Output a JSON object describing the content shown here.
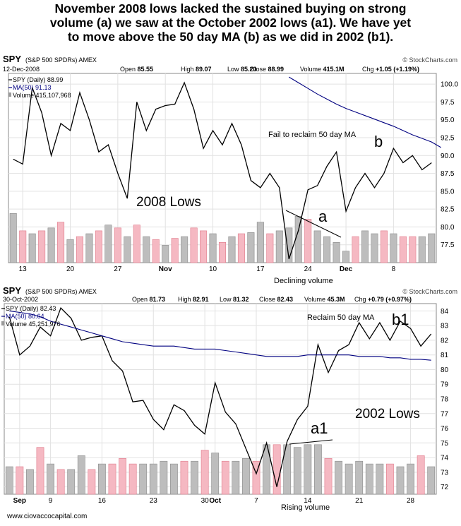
{
  "headline": [
    "November 2008 lows lacked the sustained buying on strong",
    "volume (a) we saw at the October 2002 lows (a1).  We have yet",
    "to move above the 50 day MA (b) as we did in 2002 (b1)."
  ],
  "footer": {
    "website": "www.ciovaccocapital.com"
  },
  "chart_data": [
    {
      "type": "line",
      "symbol": "SPY",
      "name": "(S&P 500 SPDRs) AMEX",
      "date": "12-Dec-2008",
      "brand": "© StockCharts.com",
      "quote": {
        "open_label": "Open",
        "open": "85.55",
        "high_label": "High",
        "high": "89.07",
        "low_label": "Low",
        "low": "85.20",
        "close_label": "Close",
        "close": "88.99",
        "volume_label": "Volume",
        "volume": "415.1M",
        "chg_label": "Chg",
        "chg": "+1.05 (+1.19%)"
      },
      "legend": [
        "SPY (Daily) 88.99",
        "MA(50) 91.13",
        "Volume 415,107,968"
      ],
      "ylim": [
        75,
        101.5
      ],
      "yticks": [
        77.5,
        80.0,
        82.5,
        85.0,
        87.5,
        90.0,
        92.5,
        95.0,
        97.5,
        100.0
      ],
      "ytick_labels": [
        "77.5",
        "80.0",
        "82.5",
        "85.0",
        "87.5",
        "90.0",
        "92.5",
        "95.0",
        "97.5",
        "100.0"
      ],
      "xticks": [
        {
          "i": 1,
          "label": "13"
        },
        {
          "i": 6,
          "label": "20"
        },
        {
          "i": 11,
          "label": "27"
        },
        {
          "i": 16,
          "label": "Nov"
        },
        {
          "i": 21,
          "label": "10"
        },
        {
          "i": 26,
          "label": "17"
        },
        {
          "i": 31,
          "label": "24"
        },
        {
          "i": 35,
          "label": "Dec"
        },
        {
          "i": 40,
          "label": "8"
        }
      ],
      "series": [
        {
          "name": "SPY (Daily)",
          "color": "#000000",
          "values": [
            89.5,
            88.8,
            99.5,
            96.0,
            90.0,
            94.5,
            93.5,
            98.8,
            95.0,
            90.5,
            91.5,
            87.5,
            84.0,
            97.5,
            93.5,
            96.5,
            97.0,
            97.2,
            100.2,
            96.5,
            91.0,
            93.5,
            91.5,
            94.5,
            91.5,
            86.5,
            85.5,
            87.5,
            85.5,
            75.5,
            79.5,
            85.2,
            85.8,
            88.5,
            90.5,
            82.2,
            85.5,
            87.5,
            85.5,
            87.5,
            91.0,
            89.0,
            90.0,
            88.0,
            88.99
          ]
        },
        {
          "name": "MA(50)",
          "color": "#000080",
          "start": 29,
          "values": [
            101.0,
            100.2,
            99.4,
            98.6,
            97.9,
            97.2,
            96.6,
            96.1,
            95.6,
            95.1,
            94.6,
            94.1,
            93.5,
            92.9,
            92.4,
            91.9,
            91.13
          ]
        }
      ],
      "volume_bars": [
        {
          "h": 0.85,
          "up": false
        },
        {
          "h": 0.55,
          "up": true
        },
        {
          "h": 0.5,
          "up": false
        },
        {
          "h": 0.55,
          "up": true
        },
        {
          "h": 0.6,
          "up": false
        },
        {
          "h": 0.7,
          "up": true
        },
        {
          "h": 0.4,
          "up": false
        },
        {
          "h": 0.45,
          "up": true
        },
        {
          "h": 0.5,
          "up": false
        },
        {
          "h": 0.55,
          "up": true
        },
        {
          "h": 0.65,
          "up": false
        },
        {
          "h": 0.6,
          "up": true
        },
        {
          "h": 0.45,
          "up": false
        },
        {
          "h": 0.65,
          "up": true
        },
        {
          "h": 0.45,
          "up": false
        },
        {
          "h": 0.4,
          "up": true
        },
        {
          "h": 0.3,
          "up": false
        },
        {
          "h": 0.42,
          "up": true
        },
        {
          "h": 0.45,
          "up": false
        },
        {
          "h": 0.6,
          "up": true
        },
        {
          "h": 0.55,
          "up": true
        },
        {
          "h": 0.5,
          "up": false
        },
        {
          "h": 0.35,
          "up": true
        },
        {
          "h": 0.45,
          "up": false
        },
        {
          "h": 0.5,
          "up": true
        },
        {
          "h": 0.52,
          "up": false
        },
        {
          "h": 0.7,
          "up": false
        },
        {
          "h": 0.5,
          "up": true
        },
        {
          "h": 0.55,
          "up": false
        },
        {
          "h": 0.6,
          "up": false
        },
        {
          "h": 0.8,
          "up": false
        },
        {
          "h": 0.75,
          "up": true
        },
        {
          "h": 0.55,
          "up": false
        },
        {
          "h": 0.45,
          "up": false
        },
        {
          "h": 0.35,
          "up": false
        },
        {
          "h": 0.2,
          "up": false
        },
        {
          "h": 0.45,
          "up": true
        },
        {
          "h": 0.55,
          "up": false
        },
        {
          "h": 0.5,
          "up": false
        },
        {
          "h": 0.55,
          "up": true
        },
        {
          "h": 0.5,
          "up": false
        },
        {
          "h": 0.45,
          "up": true
        },
        {
          "h": 0.45,
          "up": true
        },
        {
          "h": 0.45,
          "up": false
        },
        {
          "h": 0.5,
          "up": false
        }
      ],
      "annotations": {
        "ma_note": "Fail to reclaim 50 day MA",
        "label_b": "b",
        "lows": "2008 Lows",
        "label_a": "a",
        "volume_note": "Declining volume"
      }
    },
    {
      "type": "line",
      "symbol": "SPY",
      "name": "(S&P 500 SPDRs) AMEX",
      "date": "30-Oct-2002",
      "brand": "© StockCharts.com",
      "quote": {
        "open_label": "Open",
        "open": "81.73",
        "high_label": "High",
        "high": "82.91",
        "low_label": "Low",
        "low": "81.32",
        "close_label": "Close",
        "close": "82.43",
        "volume_label": "Volume",
        "volume": "45.3M",
        "chg_label": "Chg",
        "chg": "+0.79 (+0.97%)"
      },
      "legend": [
        "SPY (Daily) 82.43",
        "MA(50) 80.64",
        "Volume 45,251,976"
      ],
      "ylim": [
        71.5,
        84.5
      ],
      "yticks": [
        72,
        73,
        74,
        75,
        76,
        77,
        78,
        79,
        80,
        81,
        82,
        83,
        84
      ],
      "ytick_labels": [
        "72",
        "73",
        "74",
        "75",
        "76",
        "77",
        "78",
        "79",
        "80",
        "81",
        "82",
        "83",
        "84"
      ],
      "xticks": [
        {
          "i": 1,
          "label": "Sep"
        },
        {
          "i": 4,
          "label": "9"
        },
        {
          "i": 9,
          "label": "16"
        },
        {
          "i": 14,
          "label": "23"
        },
        {
          "i": 19,
          "label": "30"
        },
        {
          "i": 20,
          "label": "Oct"
        },
        {
          "i": 24,
          "label": "7"
        },
        {
          "i": 29,
          "label": "14"
        },
        {
          "i": 34,
          "label": "21"
        },
        {
          "i": 39,
          "label": "28"
        }
      ],
      "series": [
        {
          "name": "SPY (Daily)",
          "color": "#000000",
          "values": [
            83.6,
            81.0,
            81.6,
            82.9,
            82.3,
            84.2,
            83.5,
            82.0,
            82.2,
            82.3,
            80.6,
            79.9,
            77.8,
            77.9,
            76.6,
            75.9,
            77.6,
            77.2,
            76.2,
            75.6,
            79.1,
            77.1,
            76.3,
            74.6,
            72.9,
            75.0,
            72.0,
            75.1,
            76.6,
            77.5,
            81.7,
            79.8,
            81.3,
            81.7,
            83.2,
            82.1,
            83.2,
            82.0,
            83.3,
            82.8,
            81.6,
            82.43
          ]
        },
        {
          "name": "MA(50)",
          "color": "#000080",
          "values": [
            84.0,
            83.9,
            83.8,
            83.6,
            83.3,
            83.1,
            82.9,
            82.7,
            82.5,
            82.3,
            82.1,
            81.9,
            81.8,
            81.7,
            81.6,
            81.6,
            81.6,
            81.5,
            81.4,
            81.4,
            81.4,
            81.3,
            81.2,
            81.1,
            81.0,
            80.9,
            80.9,
            80.9,
            80.9,
            81.0,
            81.0,
            81.0,
            81.0,
            81.0,
            80.9,
            80.9,
            80.9,
            80.8,
            80.8,
            80.7,
            80.7,
            80.64
          ]
        }
      ],
      "volume_bars": [
        {
          "h": 0.5,
          "up": false
        },
        {
          "h": 0.5,
          "up": true
        },
        {
          "h": 0.45,
          "up": false
        },
        {
          "h": 0.85,
          "up": true
        },
        {
          "h": 0.55,
          "up": false
        },
        {
          "h": 0.45,
          "up": true
        },
        {
          "h": 0.45,
          "up": false
        },
        {
          "h": 0.7,
          "up": false
        },
        {
          "h": 0.45,
          "up": true
        },
        {
          "h": 0.55,
          "up": false
        },
        {
          "h": 0.55,
          "up": true
        },
        {
          "h": 0.65,
          "up": true
        },
        {
          "h": 0.55,
          "up": true
        },
        {
          "h": 0.55,
          "up": false
        },
        {
          "h": 0.55,
          "up": false
        },
        {
          "h": 0.6,
          "up": false
        },
        {
          "h": 0.55,
          "up": false
        },
        {
          "h": 0.6,
          "up": true
        },
        {
          "h": 0.6,
          "up": false
        },
        {
          "h": 0.8,
          "up": true
        },
        {
          "h": 0.75,
          "up": false
        },
        {
          "h": 0.6,
          "up": true
        },
        {
          "h": 0.6,
          "up": false
        },
        {
          "h": 0.65,
          "up": false
        },
        {
          "h": 0.6,
          "up": true
        },
        {
          "h": 0.9,
          "up": false
        },
        {
          "h": 0.9,
          "up": true
        },
        {
          "h": 0.9,
          "up": false
        },
        {
          "h": 0.85,
          "up": false
        },
        {
          "h": 0.9,
          "up": false
        },
        {
          "h": 0.9,
          "up": false
        },
        {
          "h": 0.65,
          "up": true
        },
        {
          "h": 0.6,
          "up": false
        },
        {
          "h": 0.55,
          "up": false
        },
        {
          "h": 0.6,
          "up": false
        },
        {
          "h": 0.55,
          "up": false
        },
        {
          "h": 0.55,
          "up": false
        },
        {
          "h": 0.55,
          "up": true
        },
        {
          "h": 0.5,
          "up": false
        },
        {
          "h": 0.55,
          "up": false
        },
        {
          "h": 0.7,
          "up": true
        },
        {
          "h": 0.5,
          "up": false
        }
      ],
      "annotations": {
        "ma_note": "Reclaim 50 day MA",
        "label_b": "b1",
        "lows": "2002 Lows",
        "label_a": "a1",
        "volume_note": "Rising volume"
      }
    }
  ]
}
